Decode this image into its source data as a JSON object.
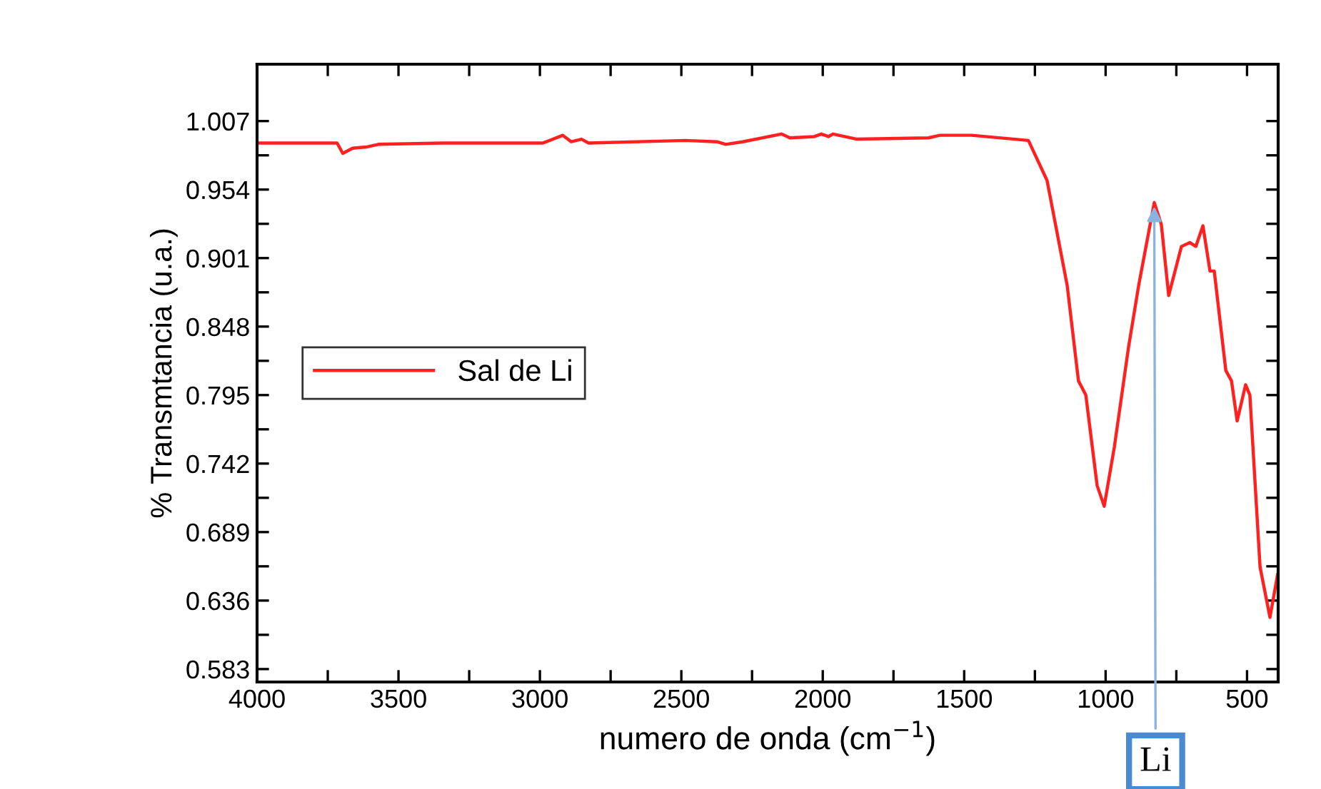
{
  "chart_data": {
    "type": "line",
    "xlabel": "numero de onda (cm$^{−1}$)",
    "ylabel": "% Transmtancia (u.a.)",
    "xlim": [
      4000,
      390
    ],
    "ylim": [
      0.573,
      1.051
    ],
    "xticks": [
      4000,
      {
        "value": 3750,
        "label": null
      },
      3500,
      {
        "value": 3250,
        "label": null
      },
      3000,
      {
        "value": 2750,
        "label": null
      },
      2500,
      {
        "value": 2250,
        "label": null
      },
      2000,
      {
        "value": 1750,
        "label": null
      },
      1500,
      {
        "value": 1250,
        "label": null
      },
      1000,
      {
        "value": 750,
        "label": null
      },
      500
    ],
    "yticks": [
      0.583,
      {
        "value": 0.6095,
        "label": null
      },
      0.636,
      {
        "value": 0.6625,
        "label": null
      },
      0.689,
      {
        "value": 0.7155,
        "label": null
      },
      0.742,
      {
        "value": 0.7685,
        "label": null
      },
      0.795,
      {
        "value": 0.8215,
        "label": null
      },
      0.848,
      {
        "value": 0.8745,
        "label": null
      },
      0.901,
      {
        "value": 0.9275,
        "label": null
      },
      0.954,
      {
        "value": 0.9805,
        "label": null
      },
      1.007
    ],
    "grid": false,
    "legend": "center left",
    "line_style": "solid",
    "marker": "none",
    "annotations": [
      {
        "text": "Li",
        "x": 828,
        "y": 0.944
      }
    ],
    "series": [
      {
        "name": "Sal de Li",
        "color": "#ff2020",
        "x": [
          4000,
          3717,
          3697,
          3662,
          3611,
          3571,
          3343,
          2990,
          2919,
          2889,
          2853,
          2828,
          2485,
          2374,
          2343,
          2283,
          2146,
          2116,
          2030,
          2005,
          1980,
          1964,
          1879,
          1626,
          1586,
          1474,
          1273,
          1207,
          1136,
          1096,
          1070,
          1030,
          1005,
          969,
          919,
          883,
          828,
          803,
          777,
          732,
          702,
          681,
          656,
          631,
          616,
          575,
          555,
          535,
          505,
          490,
          454,
          419,
          392
        ],
        "values": [
          0.99,
          0.99,
          0.982,
          0.986,
          0.987,
          0.989,
          0.99,
          0.99,
          0.996,
          0.991,
          0.993,
          0.99,
          0.992,
          0.991,
          0.989,
          0.991,
          0.997,
          0.994,
          0.995,
          0.997,
          0.995,
          0.997,
          0.993,
          0.994,
          0.996,
          0.996,
          0.992,
          0.961,
          0.88,
          0.806,
          0.795,
          0.725,
          0.709,
          0.755,
          0.832,
          0.88,
          0.944,
          0.927,
          0.872,
          0.91,
          0.913,
          0.91,
          0.926,
          0.891,
          0.891,
          0.814,
          0.806,
          0.775,
          0.803,
          0.795,
          0.662,
          0.623,
          0.656
        ]
      }
    ]
  }
}
